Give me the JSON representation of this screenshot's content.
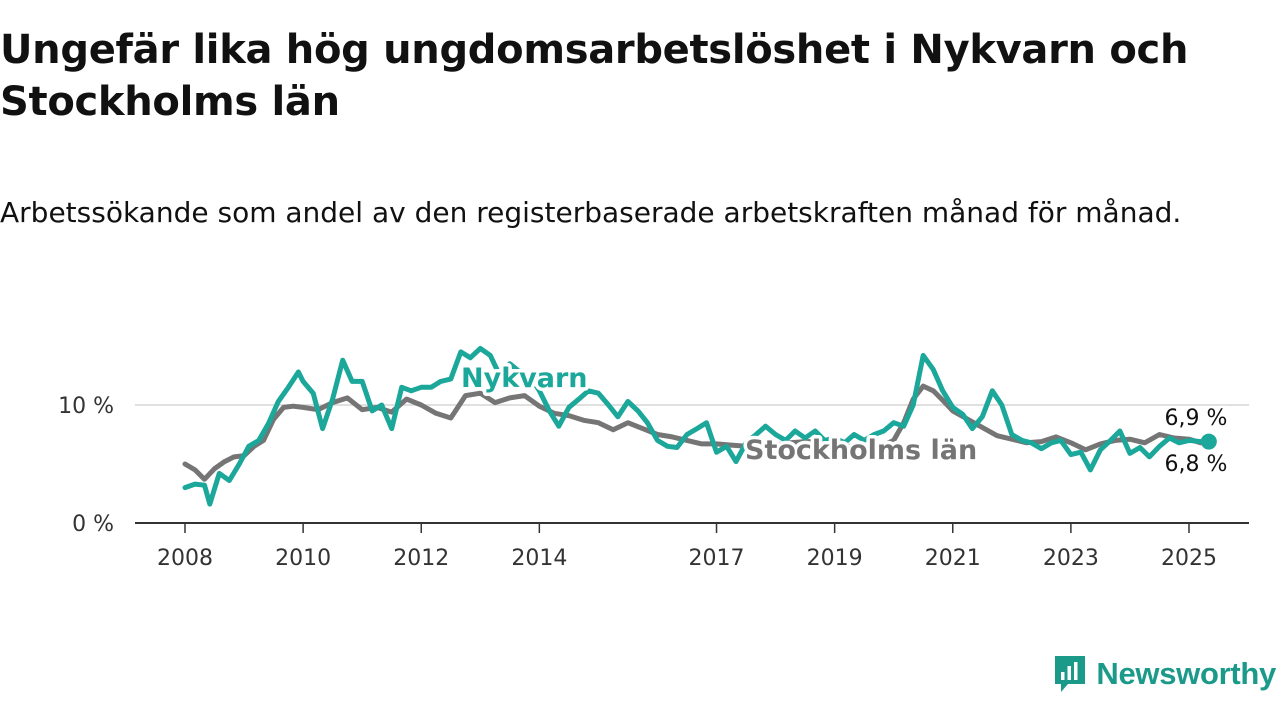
{
  "title": "Ungefär lika hög ungdomsarbetslöshet i Nykvarn och Stockholms län",
  "subtitle": "Arbetssökande som andel av den registerbaserade arbetskraften månad för månad.",
  "brand": {
    "name": "Newsworthy",
    "color": "#1b9a8a",
    "icon": "newsworthy-logo-icon"
  },
  "chart_data": {
    "type": "line",
    "xlim": [
      2008,
      2025.7
    ],
    "ylim": [
      0,
      15
    ],
    "grid": true,
    "y_ticks": [
      0,
      10
    ],
    "y_tick_labels": [
      "0 %",
      "10 %"
    ],
    "x_ticks": [
      2008,
      2010,
      2012,
      2014,
      2017,
      2019,
      2021,
      2023,
      2025
    ],
    "x_tick_labels": [
      "2008",
      "2010",
      "2012",
      "2014",
      "2017",
      "2019",
      "2021",
      "2023",
      "2025"
    ],
    "series": [
      {
        "name": "Stockholms län",
        "color": "#757575",
        "end_label": "6,8 %",
        "x": [
          2008.0,
          2008.17,
          2008.33,
          2008.5,
          2008.67,
          2008.83,
          2009.0,
          2009.17,
          2009.33,
          2009.5,
          2009.67,
          2009.83,
          2010.0,
          2010.25,
          2010.5,
          2010.75,
          2011.0,
          2011.25,
          2011.5,
          2011.75,
          2012.0,
          2012.25,
          2012.5,
          2012.75,
          2013.0,
          2013.25,
          2013.5,
          2013.75,
          2014.0,
          2014.25,
          2014.5,
          2014.75,
          2015.0,
          2015.25,
          2015.5,
          2015.75,
          2016.0,
          2016.25,
          2016.5,
          2016.75,
          2017.0,
          2017.25,
          2017.5,
          2017.75,
          2018.0,
          2018.25,
          2018.5,
          2018.75,
          2019.0,
          2019.25,
          2019.5,
          2019.75,
          2020.0,
          2020.17,
          2020.33,
          2020.5,
          2020.67,
          2020.83,
          2021.0,
          2021.25,
          2021.5,
          2021.75,
          2022.0,
          2022.25,
          2022.5,
          2022.75,
          2023.0,
          2023.25,
          2023.5,
          2023.75,
          2024.0,
          2024.25,
          2024.5,
          2024.75,
          2025.0,
          2025.2
        ],
        "y": [
          5.0,
          4.5,
          3.7,
          4.6,
          5.2,
          5.6,
          5.7,
          6.5,
          7.0,
          8.8,
          9.8,
          9.9,
          9.8,
          9.6,
          10.2,
          10.6,
          9.6,
          9.8,
          9.4,
          10.5,
          10.0,
          9.3,
          8.9,
          10.8,
          11.0,
          10.2,
          10.6,
          10.8,
          9.9,
          9.3,
          9.1,
          8.7,
          8.5,
          7.9,
          8.5,
          8.0,
          7.5,
          7.3,
          7.0,
          6.7,
          6.7,
          6.6,
          6.5,
          6.5,
          6.6,
          6.8,
          6.9,
          6.9,
          6.7,
          6.5,
          6.3,
          6.4,
          7.0,
          8.5,
          10.5,
          11.6,
          11.2,
          10.4,
          9.5,
          8.8,
          8.1,
          7.4,
          7.1,
          6.8,
          6.9,
          7.3,
          6.8,
          6.2,
          6.7,
          7.0,
          7.1,
          6.8,
          7.5,
          7.2,
          7.1,
          6.8
        ]
      },
      {
        "name": "Nykvarn",
        "color": "#1ba79a",
        "end_label": "6,9 %",
        "x": [
          2008.0,
          2008.17,
          2008.33,
          2008.42,
          2008.58,
          2008.75,
          2008.92,
          2009.08,
          2009.25,
          2009.42,
          2009.58,
          2009.75,
          2009.92,
          2010.0,
          2010.17,
          2010.33,
          2010.5,
          2010.67,
          2010.83,
          2011.0,
          2011.17,
          2011.33,
          2011.5,
          2011.67,
          2011.83,
          2012.0,
          2012.17,
          2012.33,
          2012.5,
          2012.67,
          2012.83,
          2013.0,
          2013.17,
          2013.33,
          2013.5,
          2013.67,
          2013.83,
          2014.0,
          2014.17,
          2014.33,
          2014.5,
          2014.67,
          2014.83,
          2015.0,
          2015.17,
          2015.33,
          2015.5,
          2015.67,
          2015.83,
          2016.0,
          2016.17,
          2016.33,
          2016.5,
          2016.67,
          2016.83,
          2017.0,
          2017.17,
          2017.33,
          2017.5,
          2017.67,
          2017.83,
          2018.0,
          2018.17,
          2018.33,
          2018.5,
          2018.67,
          2018.83,
          2019.0,
          2019.17,
          2019.33,
          2019.5,
          2019.67,
          2019.83,
          2020.0,
          2020.17,
          2020.33,
          2020.5,
          2020.67,
          2020.83,
          2021.0,
          2021.17,
          2021.33,
          2021.5,
          2021.67,
          2021.83,
          2022.0,
          2022.17,
          2022.33,
          2022.5,
          2022.67,
          2022.83,
          2023.0,
          2023.17,
          2023.33,
          2023.5,
          2023.67,
          2023.83,
          2024.0,
          2024.17,
          2024.33,
          2024.5,
          2024.67,
          2024.83,
          2025.0,
          2025.2
        ],
        "y": [
          3.0,
          3.3,
          3.2,
          1.6,
          4.2,
          3.6,
          5.0,
          6.5,
          7.0,
          8.5,
          10.3,
          11.5,
          12.8,
          12.0,
          11.0,
          8.0,
          10.5,
          13.8,
          12.0,
          12.0,
          9.5,
          10.0,
          8.0,
          11.5,
          11.2,
          11.5,
          11.5,
          12.0,
          12.2,
          14.5,
          14.0,
          14.8,
          14.2,
          12.5,
          13.5,
          12.8,
          12.5,
          11.2,
          9.5,
          8.2,
          9.8,
          10.5,
          11.2,
          11.0,
          10.0,
          9.0,
          10.3,
          9.5,
          8.5,
          7.0,
          6.5,
          6.4,
          7.5,
          8.0,
          8.5,
          6.0,
          6.5,
          5.2,
          6.8,
          7.5,
          8.2,
          7.5,
          7.0,
          7.8,
          7.2,
          7.8,
          7.0,
          7.2,
          6.8,
          7.5,
          7.0,
          7.5,
          7.8,
          8.5,
          8.2,
          10.0,
          14.2,
          13.0,
          11.2,
          9.8,
          9.2,
          8.0,
          9.0,
          11.2,
          10.0,
          7.5,
          7.0,
          6.8,
          6.3,
          6.8,
          7.0,
          5.8,
          6.0,
          4.5,
          6.2,
          7.0,
          7.8,
          5.9,
          6.4,
          5.6,
          6.5,
          7.2,
          6.8,
          7.0,
          6.9
        ]
      }
    ]
  }
}
